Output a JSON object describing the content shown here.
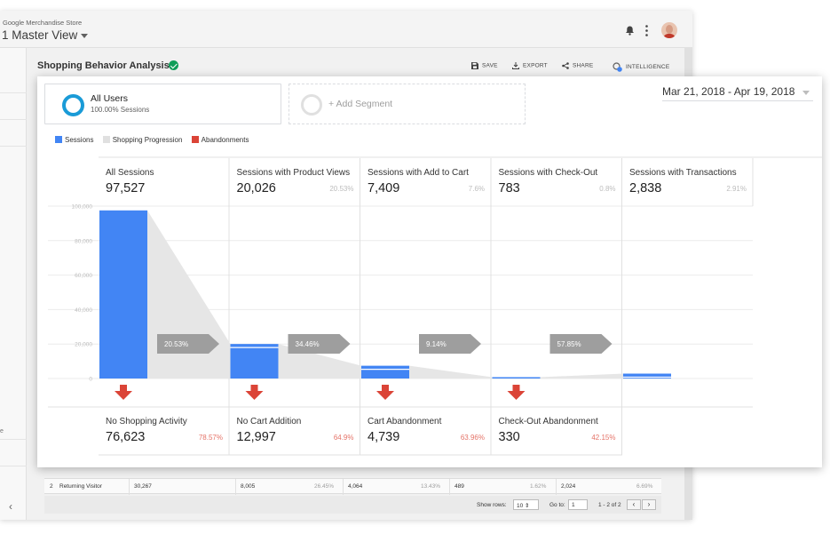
{
  "header": {
    "store_name": "Google Merchandise Store",
    "view_name": "1 Master View"
  },
  "page": {
    "title": "Shopping Behavior Analysis",
    "actions": {
      "save": "SAVE",
      "export": "EXPORT",
      "share": "SHARE",
      "intelligence": "INTELLIGENCE"
    }
  },
  "leftnav": {
    "fragment": "e"
  },
  "segments": {
    "active": {
      "name": "All Users",
      "detail": "100.00% Sessions"
    },
    "add_label": "+ Add Segment"
  },
  "date_range": "Mar 21, 2018 - Apr 19, 2018",
  "legend": [
    {
      "label": "Sessions",
      "color": "#4285f4"
    },
    {
      "label": "Shopping Progression",
      "color": "#e0e0e0"
    },
    {
      "label": "Abandonments",
      "color": "#db4437"
    }
  ],
  "stages": [
    {
      "label": "All Sessions",
      "value": "97,527",
      "pct": ""
    },
    {
      "label": "Sessions with Product Views",
      "value": "20,026",
      "pct": "20.53%"
    },
    {
      "label": "Sessions with Add to Cart",
      "value": "7,409",
      "pct": "7.6%"
    },
    {
      "label": "Sessions with Check-Out",
      "value": "783",
      "pct": "0.8%"
    },
    {
      "label": "Sessions with Transactions",
      "value": "2,838",
      "pct": "2.91%"
    }
  ],
  "abandonments": [
    {
      "label": "No Shopping Activity",
      "value": "76,623",
      "pct": "78.57%"
    },
    {
      "label": "No Cart Addition",
      "value": "12,997",
      "pct": "64.9%"
    },
    {
      "label": "Cart Abandonment",
      "value": "4,739",
      "pct": "63.96%"
    },
    {
      "label": "Check-Out Abandonment",
      "value": "330",
      "pct": "42.15%"
    }
  ],
  "chart_data": {
    "type": "bar",
    "categories": [
      "All Sessions",
      "Sessions with Product Views",
      "Sessions with Add to Cart",
      "Sessions with Check-Out",
      "Sessions with Transactions"
    ],
    "values": [
      97527,
      20026,
      7409,
      783,
      2838
    ],
    "ylim": [
      0,
      100000
    ],
    "yticks": [
      "100,000",
      "80,000",
      "60,000",
      "40,000",
      "20,000",
      "0"
    ],
    "progression_labels": [
      "20.53%",
      "34.46%",
      "9.14%",
      "57.85%"
    ],
    "grid": true
  },
  "table_row": {
    "index": "2",
    "name": "Returning Visitor",
    "c1": "30,267",
    "c2": "8,005",
    "c2p": "26.45%",
    "c3": "4,064",
    "c3p": "13.43%",
    "c4": "489",
    "c4p": "1.62%",
    "c5": "2,024",
    "c5p": "6.69%"
  },
  "pager": {
    "show_rows_label": "Show rows:",
    "show_rows_value": "10",
    "goto_label": "Go to:",
    "goto_value": "1",
    "range": "1 - 2 of 2"
  },
  "colors": {
    "sessions": "#4285f4",
    "progression": "#e6e6e6",
    "abandon": "#db4437",
    "arrow_label": "#9e9e9e"
  }
}
